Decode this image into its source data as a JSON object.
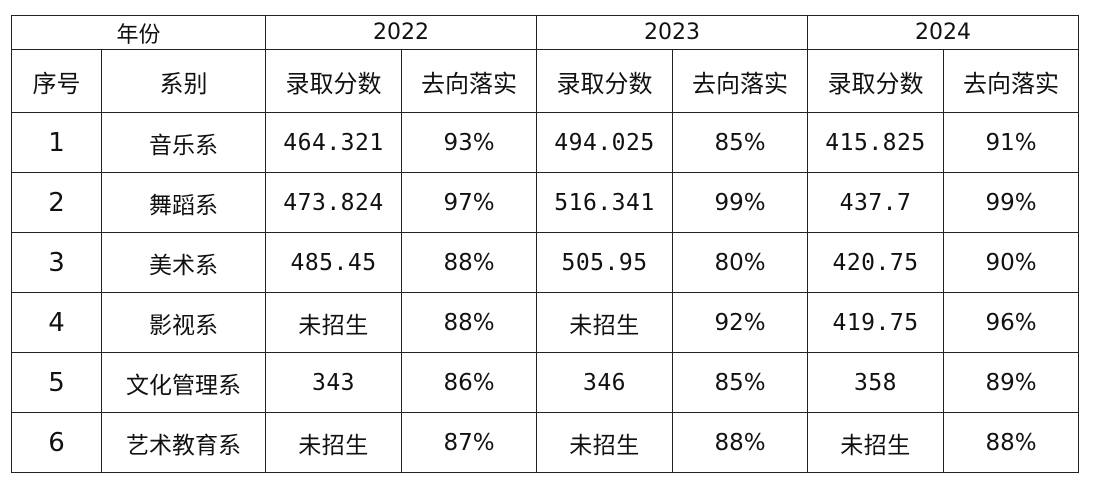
{
  "table": {
    "year_header_label": "年份",
    "years": [
      "2022",
      "2023",
      "2024"
    ],
    "col_index": "序号",
    "col_department": "系别",
    "sub_score": "录取分数",
    "sub_employment": "去向落实",
    "rows": [
      {
        "index": "1",
        "department": "音乐系",
        "y2022_score": "464.321",
        "y2022_rate": "93%",
        "y2023_score": "494.025",
        "y2023_rate": "85%",
        "y2024_score": "415.825",
        "y2024_rate": "91%"
      },
      {
        "index": "2",
        "department": "舞蹈系",
        "y2022_score": "473.824",
        "y2022_rate": "97%",
        "y2023_score": "516.341",
        "y2023_rate": "99%",
        "y2024_score": "437.7",
        "y2024_rate": "99%"
      },
      {
        "index": "3",
        "department": "美术系",
        "y2022_score": "485.45",
        "y2022_rate": "88%",
        "y2023_score": "505.95",
        "y2023_rate": "80%",
        "y2024_score": "420.75",
        "y2024_rate": "90%"
      },
      {
        "index": "4",
        "department": "影视系",
        "y2022_score": "未招生",
        "y2022_rate": "88%",
        "y2023_score": "未招生",
        "y2023_rate": "92%",
        "y2024_score": "419.75",
        "y2024_rate": "96%"
      },
      {
        "index": "5",
        "department": "文化管理系",
        "y2022_score": "343",
        "y2022_rate": "86%",
        "y2023_score": "346",
        "y2023_rate": "85%",
        "y2024_score": "358",
        "y2024_rate": "89%"
      },
      {
        "index": "6",
        "department": "艺术教育系",
        "y2022_score": "未招生",
        "y2022_rate": "87%",
        "y2023_score": "未招生",
        "y2023_rate": "88%",
        "y2024_score": "未招生",
        "y2024_rate": "88%"
      }
    ]
  }
}
